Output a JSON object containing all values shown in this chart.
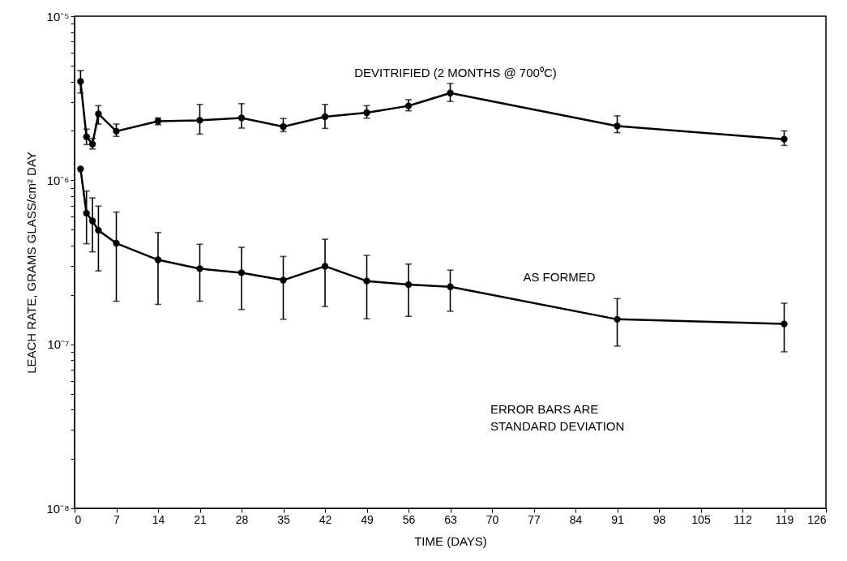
{
  "chart_data": {
    "type": "line",
    "xlabel": "TIME (DAYS)",
    "ylabel": "LEACH RATE, GRAMS GLASS/cm² DAY",
    "x": [
      1,
      2,
      3,
      4,
      7,
      14,
      21,
      28,
      35,
      42,
      49,
      56,
      63,
      91,
      119
    ],
    "series": [
      {
        "name": "DEVITRIFIED (2 MONTHS @ 700⁰C)",
        "color": "#000000",
        "values": [
          4e-06,
          1.84e-06,
          1.66e-06,
          2.54e-06,
          1.99e-06,
          2.29e-06,
          2.32e-06,
          2.4e-06,
          2.12e-06,
          2.44e-06,
          2.58e-06,
          2.84e-06,
          3.4e-06,
          2.14e-06,
          1.78e-06
        ],
        "errors": [
          [
            3.4e-06,
            4.66e-06
          ],
          [
            1.65e-06,
            2.05e-06
          ],
          [
            1.55e-06,
            1.8e-06
          ],
          [
            2.2e-06,
            2.85e-06
          ],
          [
            1.85e-06,
            2.2e-06
          ],
          [
            2.18e-06,
            2.4e-06
          ],
          [
            1.91e-06,
            2.9e-06
          ],
          [
            2.08e-06,
            2.93e-06
          ],
          [
            1.98e-06,
            2.38e-06
          ],
          [
            2.07e-06,
            2.9e-06
          ],
          [
            2.39e-06,
            2.85e-06
          ],
          [
            2.65e-06,
            3.1e-06
          ],
          [
            3.02e-06,
            3.89e-06
          ],
          [
            1.95e-06,
            2.47e-06
          ],
          [
            1.63e-06,
            2e-06
          ]
        ]
      },
      {
        "name": "AS FORMED",
        "color": "#000000",
        "values": [
          1.17e-06,
          6.3e-07,
          5.65e-07,
          4.95e-07,
          4.13e-07,
          3.27e-07,
          2.89e-07,
          2.73e-07,
          2.46e-07,
          2.99e-07,
          2.43e-07,
          2.31e-07,
          2.24e-07,
          1.42e-07,
          1.33e-07
        ],
        "errors": [
          null,
          [
            4.1e-07,
            8.6e-07
          ],
          [
            3.66e-07,
            7.8e-07
          ],
          [
            2.8e-07,
            6.95e-07
          ],
          [
            1.83e-07,
            6.4e-07
          ],
          [
            1.75e-07,
            4.8e-07
          ],
          [
            1.83e-07,
            4.07e-07
          ],
          [
            1.63e-07,
            3.9e-07
          ],
          [
            1.42e-07,
            3.43e-07
          ],
          [
            1.7e-07,
            4.37e-07
          ],
          [
            1.43e-07,
            3.48e-07
          ],
          [
            1.48e-07,
            3.08e-07
          ],
          [
            1.59e-07,
            2.83e-07
          ],
          [
            9.75e-08,
            1.9e-07
          ],
          [
            9e-08,
            1.78e-07
          ]
        ]
      }
    ],
    "xlim": [
      0,
      126
    ],
    "xticks": [
      0,
      7,
      14,
      21,
      28,
      35,
      42,
      49,
      56,
      63,
      70,
      77,
      84,
      91,
      98,
      105,
      112,
      119,
      126
    ],
    "log": true,
    "ylim": [
      1e-08,
      1e-05
    ],
    "yticks": [
      {
        "value": 1e-08,
        "label": "10⁻⁸"
      },
      {
        "value": 2e-08,
        "label": null
      },
      {
        "value": 3e-08,
        "label": null
      },
      {
        "value": 4e-08,
        "label": null
      },
      {
        "value": 5e-08,
        "label": null
      },
      {
        "value": 6e-08,
        "label": null
      },
      {
        "value": 7e-08,
        "label": null
      },
      {
        "value": 8e-08,
        "label": null
      },
      {
        "value": 9e-08,
        "label": null
      },
      {
        "value": 1e-07,
        "label": "10⁻⁷"
      },
      {
        "value": 2e-07,
        "label": null
      },
      {
        "value": 3e-07,
        "label": null
      },
      {
        "value": 4e-07,
        "label": null
      },
      {
        "value": 5e-07,
        "label": null
      },
      {
        "value": 6e-07,
        "label": null
      },
      {
        "value": 7e-07,
        "label": null
      },
      {
        "value": 8e-07,
        "label": null
      },
      {
        "value": 9e-07,
        "label": null
      },
      {
        "value": 1e-06,
        "label": "10⁻⁶"
      },
      {
        "value": 2e-06,
        "label": null
      },
      {
        "value": 3e-06,
        "label": null
      },
      {
        "value": 4e-06,
        "label": null
      },
      {
        "value": 5e-06,
        "label": null
      },
      {
        "value": 6e-06,
        "label": null
      },
      {
        "value": 7e-06,
        "label": null
      },
      {
        "value": 8e-06,
        "label": null
      },
      {
        "value": 9e-06,
        "label": null
      },
      {
        "value": 1e-05,
        "label": "10⁻⁵"
      }
    ],
    "marker": "circle",
    "line_style": "solid",
    "grid": false,
    "annotations": [
      "ERROR BARS ARE\nSTANDARD DEVIATION"
    ]
  }
}
